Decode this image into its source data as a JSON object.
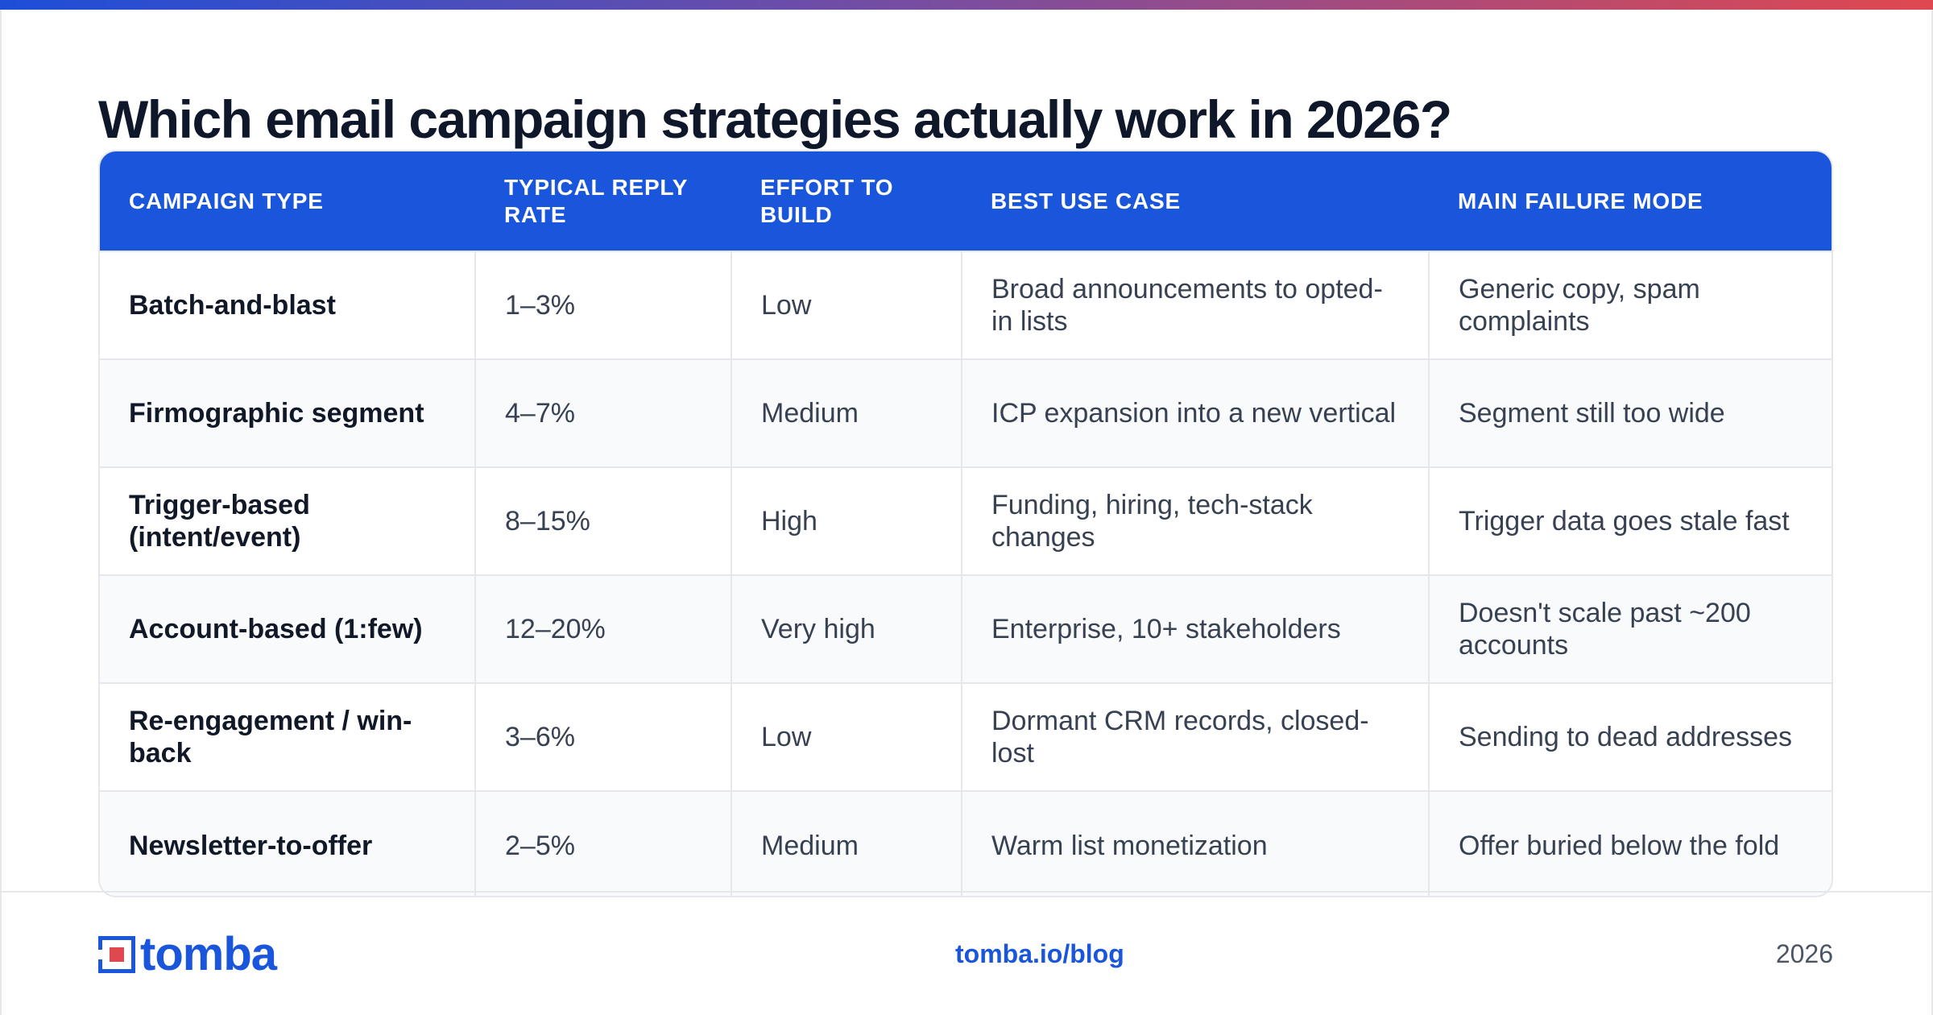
{
  "title": "Which email campaign strategies actually work in 2026?",
  "table": {
    "headers": [
      "CAMPAIGN TYPE",
      "TYPICAL REPLY RATE",
      "EFFORT TO BUILD",
      "BEST USE CASE",
      "MAIN FAILURE MODE"
    ],
    "rows": [
      [
        "Batch-and-blast",
        "1–3%",
        "Low",
        "Broad announcements to opted-in lists",
        "Generic copy, spam complaints"
      ],
      [
        "Firmographic segment",
        "4–7%",
        "Medium",
        "ICP expansion into a new vertical",
        "Segment still too wide"
      ],
      [
        "Trigger-based (intent/event)",
        "8–15%",
        "High",
        "Funding, hiring, tech-stack changes",
        "Trigger data goes stale fast"
      ],
      [
        "Account-based (1:few)",
        "12–20%",
        "Very high",
        "Enterprise, 10+ stakeholders",
        "Doesn't scale past ~200 accounts"
      ],
      [
        "Re-engagement / win-back",
        "3–6%",
        "Low",
        "Dormant CRM records, closed-lost",
        "Sending to dead addresses"
      ],
      [
        "Newsletter-to-offer",
        "2–5%",
        "Medium",
        "Warm list monetization",
        "Offer buried below the fold"
      ]
    ]
  },
  "footer": {
    "logo_text": "tomba",
    "logo_icon": "tomba-logo-icon",
    "link": "tomba.io/blog",
    "year": "2026"
  },
  "colors": {
    "accent": "#1a56db",
    "gradient_start": "#1d4ed8",
    "gradient_end": "#e0484f",
    "logo_red": "#e0484f"
  }
}
